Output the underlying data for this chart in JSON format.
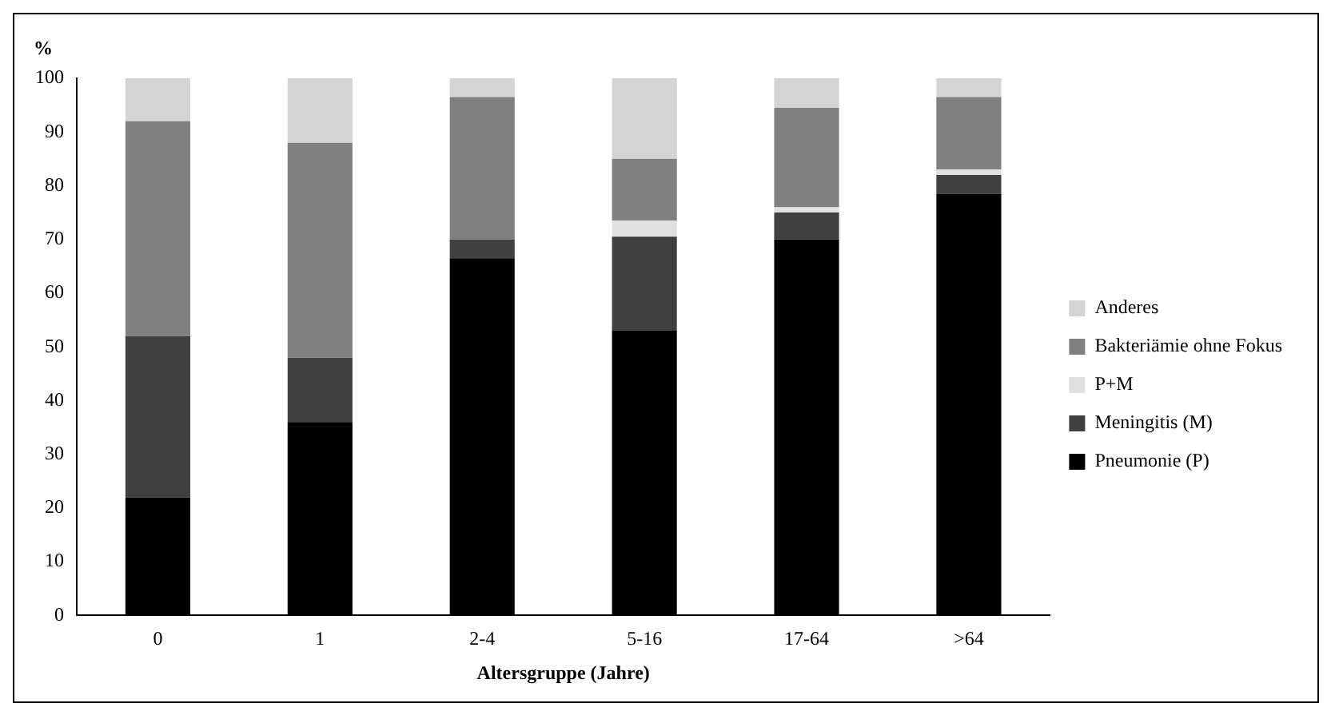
{
  "chart_data": {
    "type": "bar",
    "stacked": true,
    "ylabel": "%",
    "xlabel": "Altersgruppe (Jahre)",
    "categories": [
      "0",
      "1",
      "2-4",
      "5-16",
      "17-64",
      ">64"
    ],
    "series": [
      {
        "name": "Pneumonie (P)",
        "color": "#000000",
        "values": [
          22,
          36,
          66.5,
          53,
          70,
          78.5
        ]
      },
      {
        "name": "Meningitis (M)",
        "color": "#404040",
        "values": [
          30,
          12,
          3.5,
          17.5,
          5,
          3.5
        ]
      },
      {
        "name": "P+M",
        "color": "#e0e0e0",
        "values": [
          0,
          0,
          0,
          3,
          1,
          1
        ]
      },
      {
        "name": "Bakteriämie ohne Fokus",
        "color": "#808080",
        "values": [
          40,
          40,
          26.5,
          11.5,
          18.5,
          13.5
        ]
      },
      {
        "name": "Anderes",
        "color": "#d4d4d4",
        "values": [
          8,
          12,
          3.5,
          15,
          5.5,
          3.5
        ]
      }
    ],
    "ylim": [
      0,
      100
    ],
    "yticks": [
      0,
      10,
      20,
      30,
      40,
      50,
      60,
      70,
      80,
      90,
      100
    ],
    "grid": false,
    "legend": "right"
  }
}
